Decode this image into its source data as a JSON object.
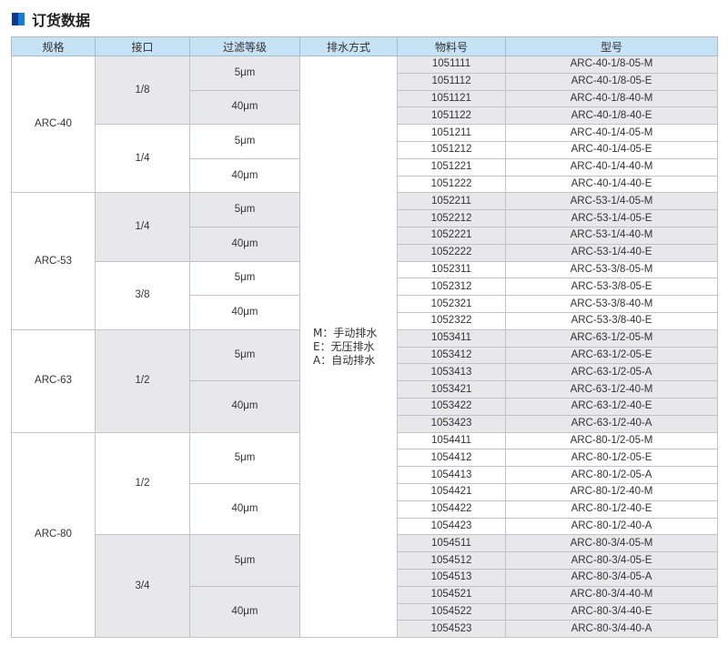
{
  "title": "订货数据",
  "headers": [
    "规格",
    "接口",
    "过滤等级",
    "排水方式",
    "物料号",
    "型号"
  ],
  "drain_legend": [
    "M：手动排水",
    "E：无压排水",
    "A：自动排水"
  ],
  "colors": {
    "header_bg": "#c6e3f5",
    "shaded_bg": "#e8e8ea",
    "title_icon": "#0a3d8f"
  },
  "groups": [
    {
      "spec": "ARC-40",
      "ports": [
        {
          "port": "1/8",
          "shaded": true,
          "filters": [
            {
              "grade": "5μm",
              "rows": [
                [
                  "1051111",
                  "ARC-40-1/8-05-M"
                ],
                [
                  "1051112",
                  "ARC-40-1/8-05-E"
                ]
              ]
            },
            {
              "grade": "40μm",
              "rows": [
                [
                  "1051121",
                  "ARC-40-1/8-40-M"
                ],
                [
                  "1051122",
                  "ARC-40-1/8-40-E"
                ]
              ]
            }
          ]
        },
        {
          "port": "1/4",
          "shaded": false,
          "filters": [
            {
              "grade": "5μm",
              "rows": [
                [
                  "1051211",
                  "ARC-40-1/4-05-M"
                ],
                [
                  "1051212",
                  "ARC-40-1/4-05-E"
                ]
              ]
            },
            {
              "grade": "40μm",
              "rows": [
                [
                  "1051221",
                  "ARC-40-1/4-40-M"
                ],
                [
                  "1051222",
                  "ARC-40-1/4-40-E"
                ]
              ]
            }
          ]
        }
      ]
    },
    {
      "spec": "ARC-53",
      "ports": [
        {
          "port": "1/4",
          "shaded": true,
          "filters": [
            {
              "grade": "5μm",
              "rows": [
                [
                  "1052211",
                  "ARC-53-1/4-05-M"
                ],
                [
                  "1052212",
                  "ARC-53-1/4-05-E"
                ]
              ]
            },
            {
              "grade": "40μm",
              "rows": [
                [
                  "1052221",
                  "ARC-53-1/4-40-M"
                ],
                [
                  "1052222",
                  "ARC-53-1/4-40-E"
                ]
              ]
            }
          ]
        },
        {
          "port": "3/8",
          "shaded": false,
          "filters": [
            {
              "grade": "5μm",
              "rows": [
                [
                  "1052311",
                  "ARC-53-3/8-05-M"
                ],
                [
                  "1052312",
                  "ARC-53-3/8-05-E"
                ]
              ]
            },
            {
              "grade": "40μm",
              "rows": [
                [
                  "1052321",
                  "ARC-53-3/8-40-M"
                ],
                [
                  "1052322",
                  "ARC-53-3/8-40-E"
                ]
              ]
            }
          ]
        }
      ]
    },
    {
      "spec": "ARC-63",
      "ports": [
        {
          "port": "1/2",
          "shaded": true,
          "filters": [
            {
              "grade": "5μm",
              "rows": [
                [
                  "1053411",
                  "ARC-63-1/2-05-M"
                ],
                [
                  "1053412",
                  "ARC-63-1/2-05-E"
                ],
                [
                  "1053413",
                  "ARC-63-1/2-05-A"
                ]
              ]
            },
            {
              "grade": "40μm",
              "rows": [
                [
                  "1053421",
                  "ARC-63-1/2-40-M"
                ],
                [
                  "1053422",
                  "ARC-63-1/2-40-E"
                ],
                [
                  "1053423",
                  "ARC-63-1/2-40-A"
                ]
              ]
            }
          ]
        }
      ]
    },
    {
      "spec": "ARC-80",
      "ports": [
        {
          "port": "1/2",
          "shaded": false,
          "filters": [
            {
              "grade": "5μm",
              "rows": [
                [
                  "1054411",
                  "ARC-80-1/2-05-M"
                ],
                [
                  "1054412",
                  "ARC-80-1/2-05-E"
                ],
                [
                  "1054413",
                  "ARC-80-1/2-05-A"
                ]
              ]
            },
            {
              "grade": "40μm",
              "rows": [
                [
                  "1054421",
                  "ARC-80-1/2-40-M"
                ],
                [
                  "1054422",
                  "ARC-80-1/2-40-E"
                ],
                [
                  "1054423",
                  "ARC-80-1/2-40-A"
                ]
              ]
            }
          ]
        },
        {
          "port": "3/4",
          "shaded": true,
          "filters": [
            {
              "grade": "5μm",
              "rows": [
                [
                  "1054511",
                  "ARC-80-3/4-05-M"
                ],
                [
                  "1054512",
                  "ARC-80-3/4-05-E"
                ],
                [
                  "1054513",
                  "ARC-80-3/4-05-A"
                ]
              ]
            },
            {
              "grade": "40μm",
              "rows": [
                [
                  "1054521",
                  "ARC-80-3/4-40-M"
                ],
                [
                  "1054522",
                  "ARC-80-3/4-40-E"
                ],
                [
                  "1054523",
                  "ARC-80-3/4-40-A"
                ]
              ]
            }
          ]
        }
      ]
    }
  ]
}
